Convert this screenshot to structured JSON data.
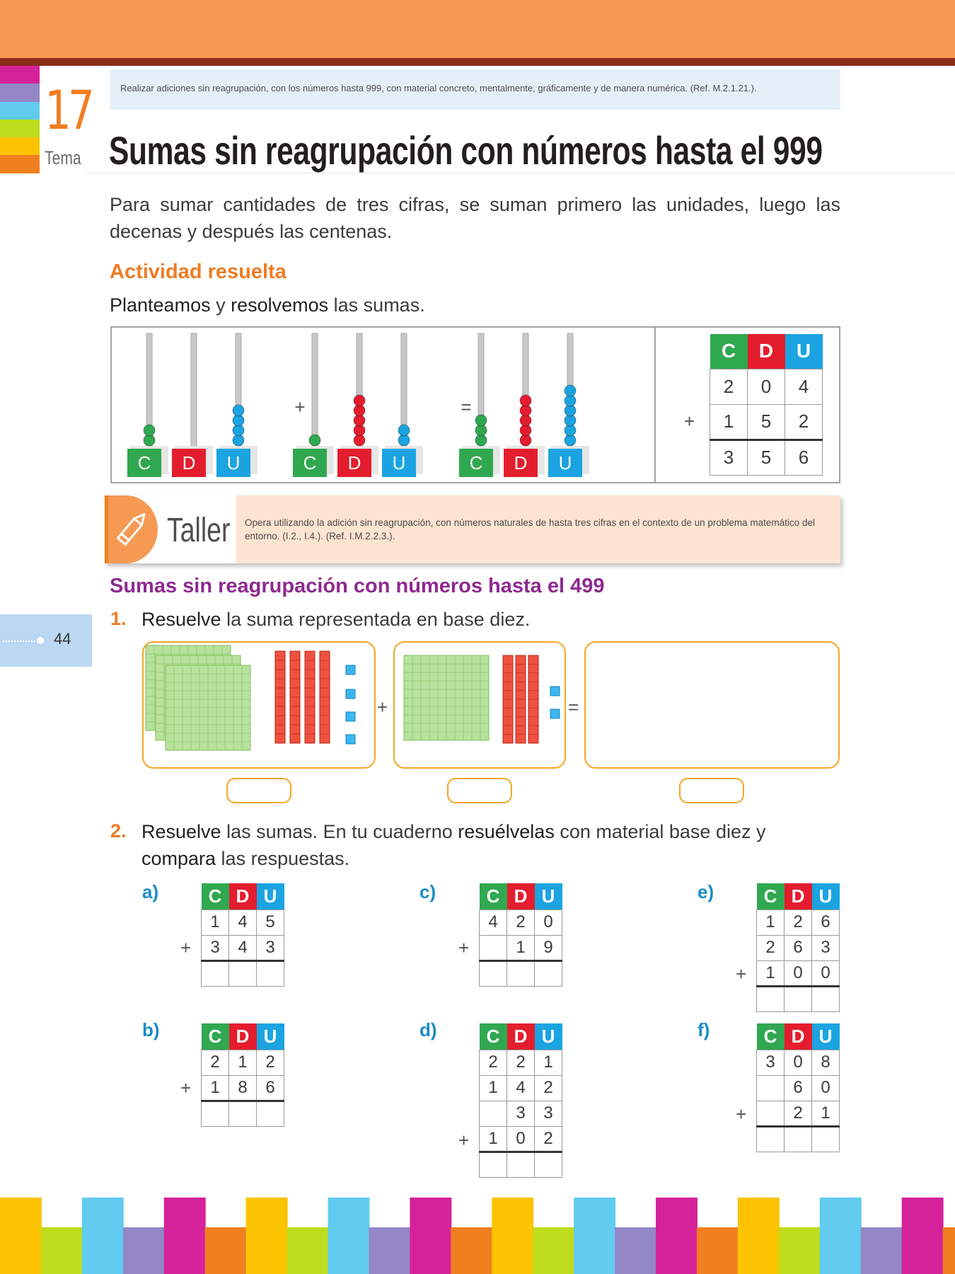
{
  "colors": {
    "accent_orange": "#f69a53",
    "dark_rule": "#8a2b1b",
    "heading_orange": "#ed7c25",
    "heading_purple": "#8e2a8f",
    "label_blue": "#1b8cc6",
    "c_green": "#2fa84f",
    "d_red": "#e41d2e",
    "u_blue": "#1ba4e1",
    "box_orange": "#f5a623"
  },
  "tema": {
    "number": "17",
    "word": "Tema"
  },
  "objective": "Realizar adiciones sin reagrupación, con los números hasta 999, con material concreto, mentalmente, gráficamente y de manera numérica. (Ref. M.2.1.21.).",
  "title": "Sumas sin reagrupación con números hasta el 999",
  "intro": "Para sumar cantidades de tres cifras, se suman primero las unidades, luego las decenas y después las centenas.",
  "activity": {
    "heading": "Actividad resuelta",
    "instr_1": "Planteamos",
    "instr_2": " y ",
    "instr_3": "resolvemos",
    "instr_4": " las sumas.",
    "plus": "+",
    "equals": "=",
    "abacus_labels": [
      "C",
      "D",
      "U"
    ],
    "abaci": [
      {
        "c": 2,
        "d": 0,
        "u": 4
      },
      {
        "c": 1,
        "d": 5,
        "u": 2
      },
      {
        "c": 3,
        "d": 5,
        "u": 6
      }
    ],
    "table": {
      "headers": [
        "C",
        "D",
        "U"
      ],
      "rows": [
        [
          "2",
          "0",
          "4"
        ],
        [
          "1",
          "5",
          "2"
        ]
      ],
      "result": [
        "3",
        "5",
        "6"
      ],
      "plus": "+"
    }
  },
  "taller": {
    "word": "Taller",
    "text": "Opera utilizando la adición sin reagrupación, con números naturales de hasta tres cifras en el contexto de un problema matemático del entorno. (I.2., I.4.). (Ref. I.M.2.2.3.).",
    "icon": "pencil-icon"
  },
  "section_heading": "Sumas sin reagrupación con números hasta el 499",
  "q1": {
    "num": "1.",
    "bold": "Resuelve",
    "rest": " la suma representada en base diez.",
    "plus": "+",
    "equals": "=",
    "first": {
      "hundreds": 3,
      "tens": 4,
      "units": 4
    },
    "second": {
      "hundreds": 1,
      "tens": 3,
      "units": 2
    }
  },
  "q2": {
    "num": "2.",
    "b1": "Resuelve",
    "t1": " las sumas. En tu cuaderno ",
    "b2": "resuélvelas",
    "t2": " con material base diez y",
    "b3": "compara",
    "t3": " las respuestas."
  },
  "exercises": {
    "headers": [
      "C",
      "D",
      "U"
    ],
    "plus": "+",
    "a": {
      "label": "a)",
      "rows": [
        [
          "1",
          "4",
          "5"
        ],
        [
          "3",
          "4",
          "3"
        ]
      ]
    },
    "b": {
      "label": "b)",
      "rows": [
        [
          "2",
          "1",
          "2"
        ],
        [
          "1",
          "8",
          "6"
        ]
      ]
    },
    "c": {
      "label": "c)",
      "rows": [
        [
          "4",
          "2",
          "0"
        ],
        [
          "",
          "1",
          "9"
        ]
      ]
    },
    "d": {
      "label": "d)",
      "rows": [
        [
          "2",
          "2",
          "1"
        ],
        [
          "1",
          "4",
          "2"
        ],
        [
          "",
          "3",
          "3"
        ],
        [
          "1",
          "0",
          "2"
        ]
      ]
    },
    "e": {
      "label": "e)",
      "rows": [
        [
          "1",
          "2",
          "6"
        ],
        [
          "2",
          "6",
          "3"
        ],
        [
          "1",
          "0",
          "0"
        ]
      ]
    },
    "f": {
      "label": "f)",
      "rows": [
        [
          "3",
          "0",
          "8"
        ],
        [
          "",
          "6",
          "0"
        ],
        [
          "",
          "2",
          "1"
        ]
      ]
    }
  },
  "page_number": "44"
}
